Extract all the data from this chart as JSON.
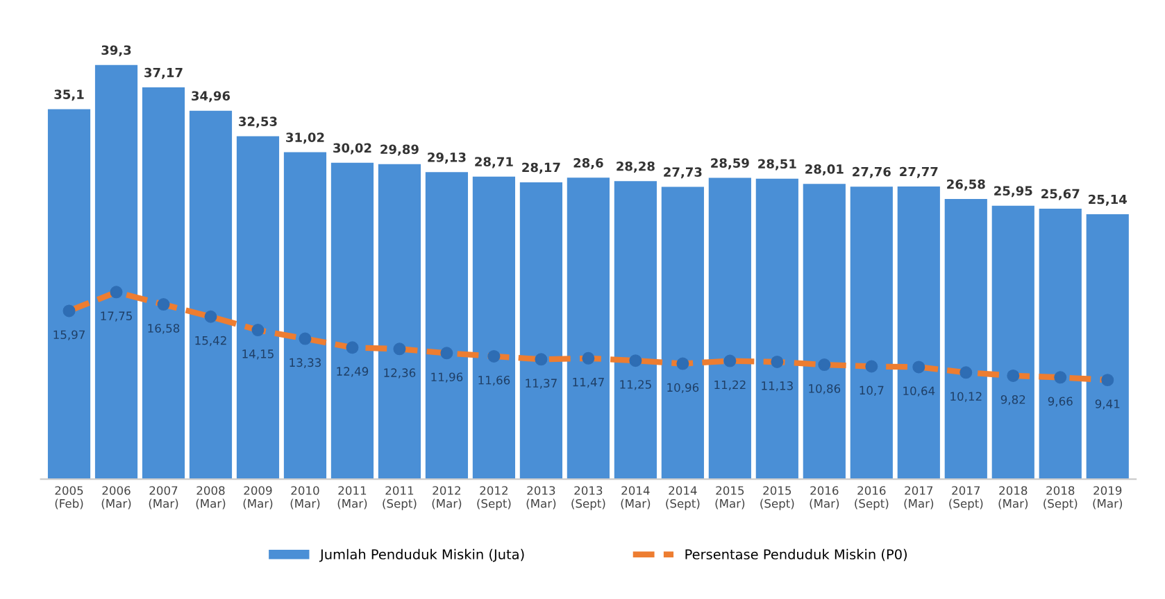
{
  "chart_data": {
    "type": "bar",
    "categories": [
      "2005\n(Feb)",
      "2006\n(Mar)",
      "2007\n(Mar)",
      "2008\n(Mar)",
      "2009\n(Mar)",
      "2010\n(Mar)",
      "2011\n(Mar)",
      "2011\n(Sept)",
      "2012\n(Mar)",
      "2012\n(Sept)",
      "2013\n(Mar)",
      "2013\n(Sept)",
      "2014\n(Mar)",
      "2014\n(Sept)",
      "2015\n(Mar)",
      "2015\n(Sept)",
      "2016\n(Mar)",
      "2016\n(Sept)",
      "2017\n(Mar)",
      "2017\n(Sept)",
      "2018\n(Mar)",
      "2018\n(Sept)",
      "2019\n(Mar)"
    ],
    "series": [
      {
        "name": "Jumlah Penduduk Miskin (Juta)",
        "color": "#4a8fd6",
        "values": [
          35.1,
          39.3,
          37.17,
          34.96,
          32.53,
          31.02,
          30.02,
          29.89,
          29.13,
          28.71,
          28.17,
          28.6,
          28.28,
          27.73,
          28.59,
          28.51,
          28.01,
          27.76,
          27.77,
          26.58,
          25.95,
          25.67,
          25.14
        ],
        "value_labels": [
          "35,1",
          "39,3",
          "37,17",
          "34,96",
          "32,53",
          "31,02",
          "30,02",
          "29,89",
          "29,13",
          "28,71",
          "28,17",
          "28,6",
          "28,28",
          "27,73",
          "28,59",
          "28,51",
          "28,01",
          "27,76",
          "27,77",
          "26,58",
          "25,95",
          "25,67",
          "25,14"
        ]
      },
      {
        "name": "Persentase Penduduk Miskin (P0)",
        "type": "line",
        "color": "#ed7d31",
        "colors": [
          "#2e6db4",
          "#2e6db4",
          "#2e6db4",
          "#2e6db4",
          "#2e6db4",
          "#2e6db4",
          "#2e6db4",
          "#2e6db4",
          "#2e6db4",
          "#2e6db4",
          "#2e6db4",
          "#2e6db4",
          "#2e6db4",
          "#2e6db4",
          "#2e6db4",
          "#2e6db4",
          "#2e6db4",
          "#2e6db4",
          "#2e6db4",
          "#2e6db4",
          "#2e6db4",
          "#2e6db4",
          "#2e6db4"
        ],
        "marker": "circle",
        "line_style": "dashed",
        "values": [
          15.97,
          17.75,
          16.58,
          15.42,
          14.15,
          13.33,
          12.49,
          12.36,
          11.96,
          11.66,
          11.37,
          11.47,
          11.25,
          10.96,
          11.22,
          11.13,
          10.86,
          10.7,
          10.64,
          10.12,
          9.82,
          9.66,
          9.41
        ],
        "value_labels": [
          "15,97",
          "17,75",
          "16,58",
          "15,42",
          "14,15",
          "13,33",
          "12,49",
          "12,36",
          "11,96",
          "11,66",
          "11,37",
          "11,47",
          "11,25",
          "10,96",
          "11,22",
          "11,13",
          "10,86",
          "10,7",
          "10,64",
          "10,12",
          "9,82",
          "9,66",
          "9,41"
        ]
      }
    ],
    "legend": "bottom",
    "grid": false
  }
}
